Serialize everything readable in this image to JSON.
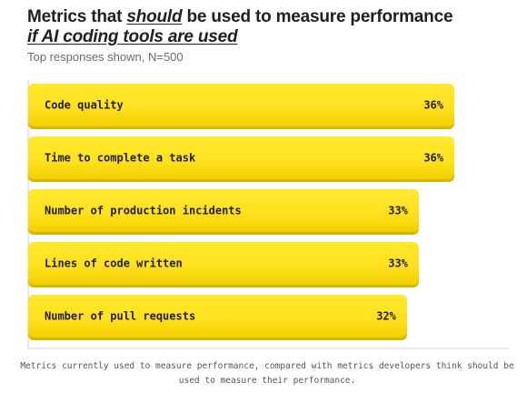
{
  "header": {
    "title_part1": "Metrics that ",
    "title_em1": "should",
    "title_part2": " be used to measure performance",
    "title_em2": "if AI coding tools are used",
    "subtitle": "Top responses shown, N=500"
  },
  "chart_data": {
    "type": "bar",
    "orientation": "horizontal",
    "categories": [
      "Code quality",
      "Time to complete a task",
      "Number of production incidents",
      "Lines of code written",
      "Number of pull requests"
    ],
    "values": [
      36,
      36,
      33,
      33,
      32
    ],
    "value_labels": [
      "36%",
      "36%",
      "33%",
      "33%",
      "32%"
    ],
    "unit": "%",
    "title": "",
    "xlabel": "",
    "ylabel": "",
    "grid": false,
    "legend": "none",
    "colors": {
      "bar": "#ffe229",
      "bar_shadow": "#d4b800",
      "text": "#1f1f1f"
    }
  },
  "footnote": "Metrics currently used to measure performance, compared with metrics developers think should be used to measure their performance."
}
